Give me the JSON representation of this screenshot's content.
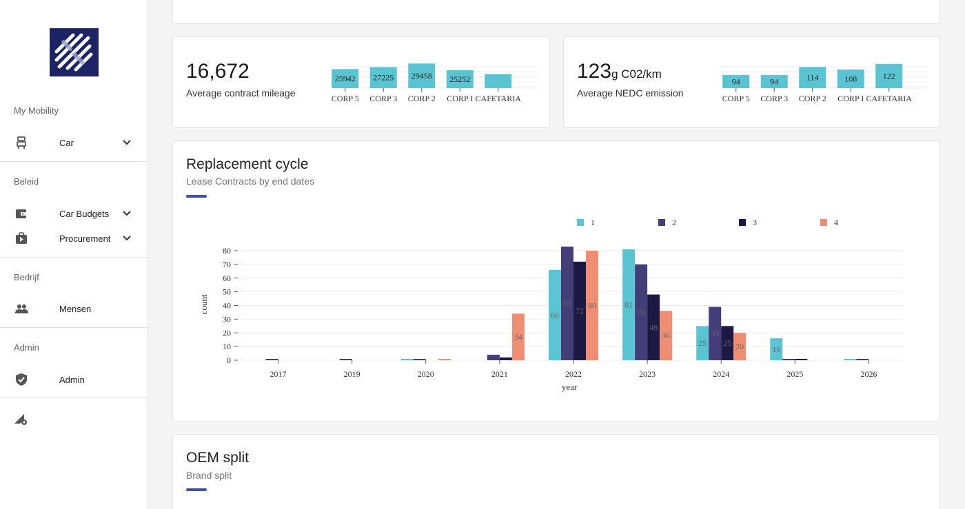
{
  "sidebar": {
    "sections": [
      {
        "title": "My Mobility",
        "items": [
          {
            "label": "Car",
            "icon": "car-seat-icon",
            "expandable": true
          }
        ]
      },
      {
        "title": "Beleid",
        "items": [
          {
            "label": "Car Budgets",
            "icon": "wallet-icon",
            "expandable": true
          },
          {
            "label": "Procurement",
            "icon": "briefcase-play-icon",
            "expandable": true
          }
        ]
      },
      {
        "title": "Bedrijf",
        "items": [
          {
            "label": "Mensen",
            "icon": "people-icon",
            "expandable": false
          }
        ]
      },
      {
        "title": "Admin",
        "items": [
          {
            "label": "Admin",
            "icon": "shield-check-icon",
            "expandable": false
          }
        ]
      }
    ],
    "footer_icon": "signal-settings-icon"
  },
  "kpi_mileage": {
    "value": "16,672",
    "label": "Average contract mileage"
  },
  "kpi_emission": {
    "value": "123",
    "unit": "g C02/km",
    "label": "Average NEDC emission"
  },
  "replacement": {
    "title": "Replacement cycle",
    "subtitle": "Lease Contracts by end dates"
  },
  "oem": {
    "title": "OEM split",
    "subtitle": "Brand split"
  },
  "colors": {
    "accent": "#3f4fb2",
    "series1": "#5bc4d2",
    "series2": "#433d78",
    "series3": "#1c1a45",
    "series4": "#ef8e73",
    "logo_bg": "#1c2466"
  },
  "chart_data": [
    {
      "type": "bar",
      "categories": [
        "CORP 5",
        "CORP 3",
        "CORP 2",
        "CORP I",
        "CAFETARIA"
      ],
      "values": [
        25942,
        27225,
        29458,
        25252,
        22800
      ],
      "labels": [
        "25942",
        "27225",
        "29458",
        "25252",
        ""
      ]
    },
    {
      "type": "bar",
      "categories": [
        "CORP 5",
        "CORP 3",
        "CORP 2",
        "CORP I",
        "CAFETARIA"
      ],
      "values": [
        94,
        94,
        114,
        108,
        122
      ],
      "labels": [
        "94",
        "94",
        "114",
        "108",
        "122"
      ]
    },
    {
      "type": "bar",
      "categories": [
        "2017",
        "2019",
        "2020",
        "2021",
        "2022",
        "2023",
        "2024",
        "2025",
        "2026"
      ],
      "xlabel": "year",
      "ylabel": "count",
      "ylim": [
        0,
        80
      ],
      "yticks": [
        0,
        10,
        20,
        30,
        40,
        50,
        60,
        70,
        80
      ],
      "legend": "top",
      "series": [
        {
          "name": "1",
          "values": [
            0,
            0,
            1,
            0,
            66,
            81,
            25,
            16,
            1
          ]
        },
        {
          "name": "2",
          "values": [
            1,
            1,
            1,
            4,
            83,
            70,
            39,
            1,
            1
          ]
        },
        {
          "name": "3",
          "values": [
            0,
            0,
            0,
            2,
            72,
            48,
            25,
            1,
            0
          ]
        },
        {
          "name": "4",
          "values": [
            0,
            0,
            1,
            34,
            80,
            36,
            20,
            0,
            0
          ]
        }
      ]
    }
  ]
}
